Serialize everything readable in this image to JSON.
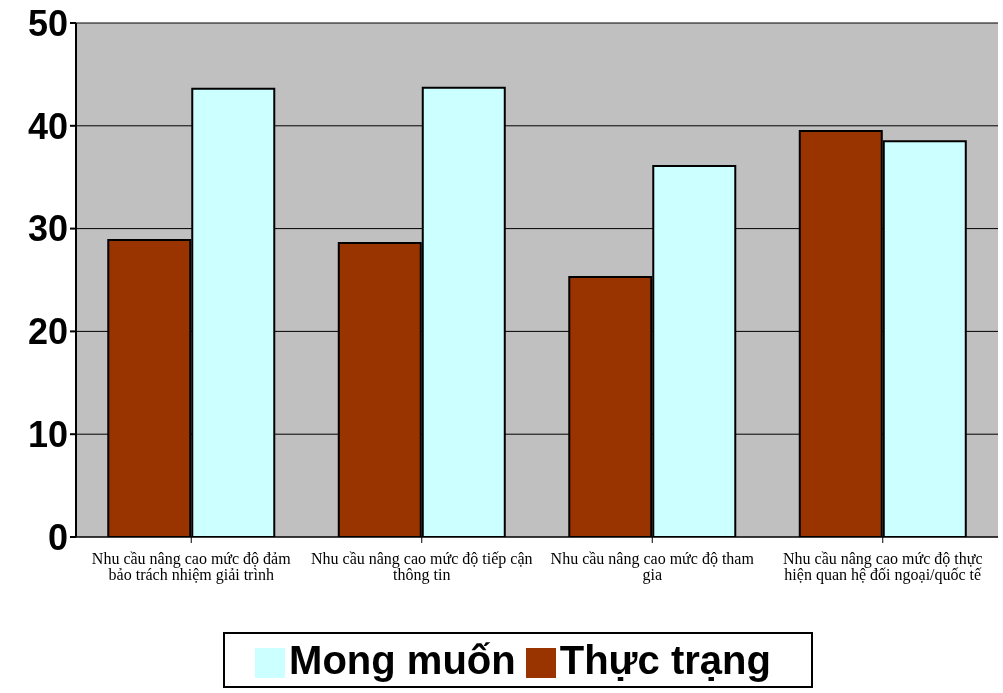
{
  "chart_data": {
    "type": "bar",
    "categories": [
      "Nhu cầu nâng cao mức độ đảm bảo trách nhiệm giải trình",
      "Nhu cầu nâng cao mức độ tiếp cận thông tin",
      "Nhu cầu nâng cao mức độ tham gia",
      "Nhu cầu nâng cao mức độ thực hiện quan hệ đối ngoại/quốc tế"
    ],
    "series": [
      {
        "name": "Thực trạng",
        "color": "#993300",
        "values": [
          28.9,
          28.6,
          25.3,
          39.5
        ]
      },
      {
        "name": "Mong muốn",
        "color": "#ccffff",
        "values": [
          43.6,
          43.7,
          36.1,
          38.5
        ]
      }
    ],
    "ylim": [
      0,
      50
    ],
    "yticks": [
      0,
      10,
      20,
      30,
      40,
      50
    ],
    "grid": "y",
    "legend": "bottom"
  }
}
